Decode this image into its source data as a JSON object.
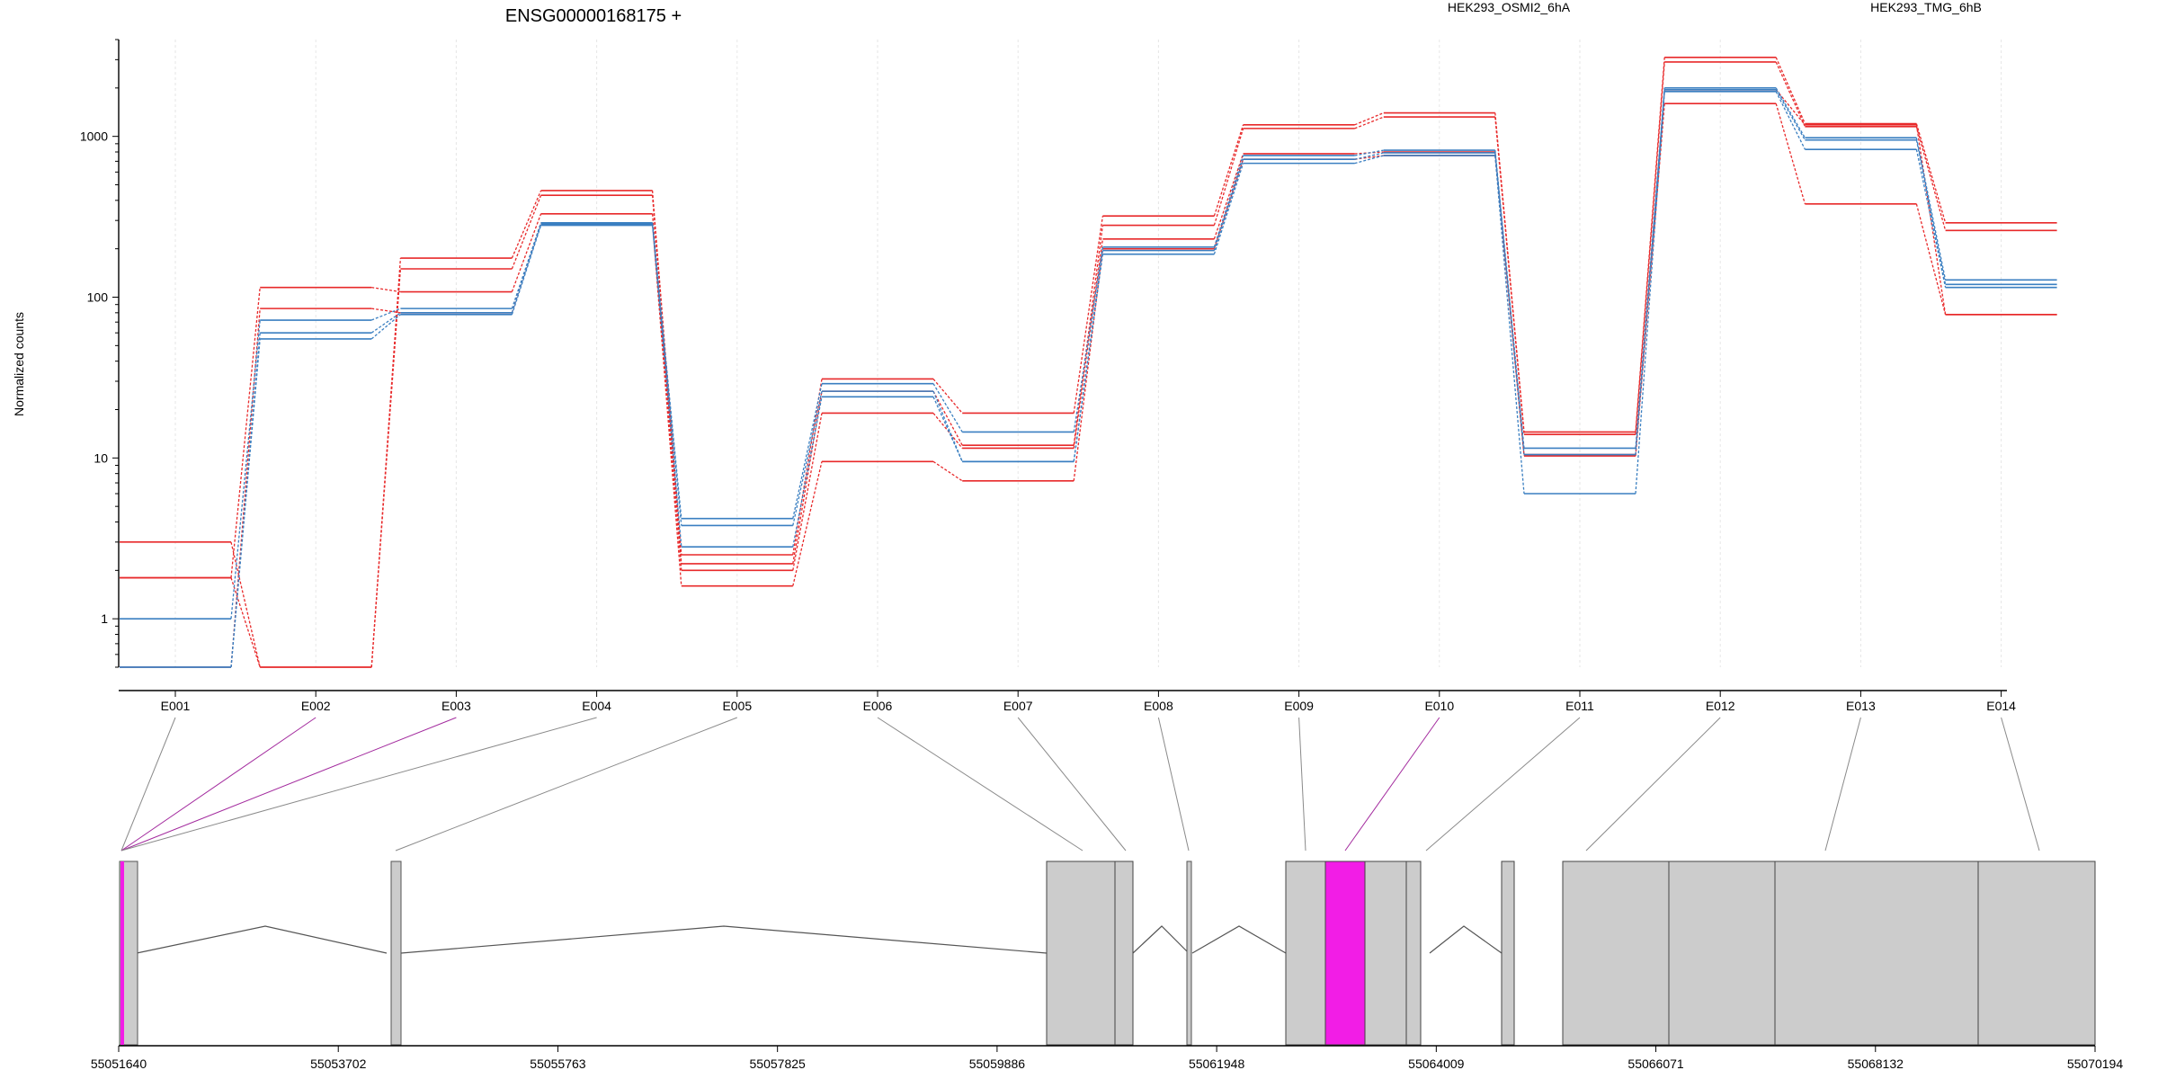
{
  "chart_data": {
    "type": "line",
    "title": "ENSG00000168175 +",
    "ylabel": "Normalized counts",
    "xlabel": "",
    "yscale": "log",
    "ylim": [
      0.5,
      4000
    ],
    "ytick_values": [
      1,
      10,
      100,
      1000
    ],
    "ytick_labels": [
      "1",
      "10",
      "100",
      "1000"
    ],
    "categories": [
      "E001",
      "E002",
      "E003",
      "E004",
      "E005",
      "E006",
      "E007",
      "E008",
      "E009",
      "E010",
      "E011",
      "E012",
      "E013",
      "E014"
    ],
    "grid": true,
    "legend_position": "top-right",
    "legend": [
      {
        "label": "HEK293_OSMI2_6hA",
        "color": "#e8292a"
      },
      {
        "label": "HEK293_TMG_6hB",
        "color": "#3a7fc1"
      }
    ],
    "series": [
      {
        "color": "#e8292a",
        "values": [
          3,
          0.5,
          175,
          460,
          2.5,
          31,
          19,
          320,
          1180,
          1400,
          14.5,
          3100,
          1200,
          290
        ]
      },
      {
        "color": "#e8292a",
        "values": [
          1.8,
          0.5,
          150,
          430,
          2.2,
          26,
          12,
          280,
          1120,
          1320,
          14,
          2900,
          1150,
          260
        ]
      },
      {
        "color": "#e8292a",
        "values": [
          1.8,
          115,
          108,
          330,
          2,
          19,
          11.5,
          230,
          780,
          800,
          10.5,
          1950,
          1180,
          78
        ]
      },
      {
        "color": "#e8292a",
        "values": [
          0.5,
          85,
          80,
          290,
          1.6,
          9.5,
          7.2,
          200,
          720,
          760,
          10.3,
          1600,
          380,
          78
        ]
      },
      {
        "color": "#3a7fc1",
        "values": [
          1,
          72,
          85,
          290,
          4.2,
          29,
          14.5,
          205,
          760,
          820,
          11.5,
          2000,
          980,
          128
        ]
      },
      {
        "color": "#3a7fc1",
        "values": [
          0.5,
          60,
          80,
          285,
          3.8,
          26,
          9.5,
          195,
          720,
          790,
          10.5,
          1950,
          950,
          120
        ]
      },
      {
        "color": "#3a7fc1",
        "values": [
          0.5,
          55,
          78,
          280,
          2.8,
          24,
          9.5,
          185,
          680,
          760,
          6,
          1900,
          830,
          115
        ]
      }
    ],
    "gene_model": {
      "coord_ticks": [
        "55051640",
        "55053702",
        "55055763",
        "55057825",
        "55059886",
        "55061948",
        "55064009",
        "55066071",
        "55068132",
        "55070194"
      ],
      "exon_highlight_color": "#f21de6",
      "exon_color": "#cccccc",
      "highlighted_exons": [
        "E002",
        "E003",
        "E010"
      ]
    }
  }
}
